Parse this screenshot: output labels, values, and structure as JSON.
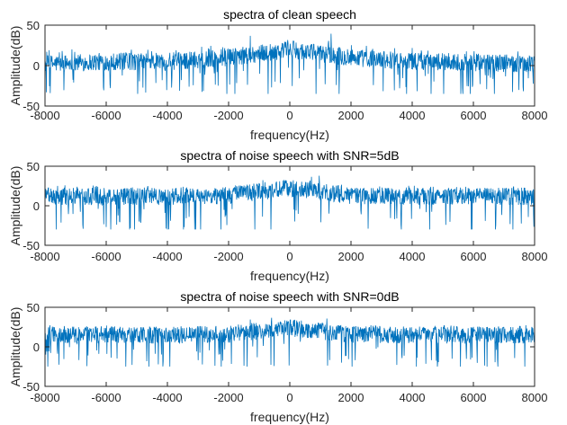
{
  "chart_data": [
    {
      "type": "line",
      "title": "spectra of clean speech",
      "xlabel": "frequency(Hz)",
      "ylabel": "Amplitude(dB)",
      "xlim": [
        -8000,
        8000
      ],
      "ylim": [
        -50,
        50
      ],
      "xticks": [
        "-8000",
        "-6000",
        "-4000",
        "-2000",
        "0",
        "2000",
        "4000",
        "6000",
        "8000"
      ],
      "yticks": [
        "-50",
        "0",
        "50"
      ],
      "series_profile": {
        "color": "#0072BD",
        "center_hz": [
          -8000,
          -6000,
          -4000,
          -2000,
          -1000,
          0,
          1000,
          2000,
          4000,
          6000,
          8000
        ],
        "mean_db": [
          2,
          5,
          5,
          10,
          15,
          20,
          15,
          10,
          5,
          4,
          2
        ],
        "peak_db": 40,
        "min_db": -35
      }
    },
    {
      "type": "line",
      "title": "spectra of noise speech with SNR=5dB",
      "xlabel": "frequency(Hz)",
      "ylabel": "Amplitude(dB)",
      "xlim": [
        -8000,
        8000
      ],
      "ylim": [
        -50,
        50
      ],
      "xticks": [
        "-8000",
        "-6000",
        "-4000",
        "-2000",
        "0",
        "2000",
        "4000",
        "6000",
        "8000"
      ],
      "yticks": [
        "-50",
        "0",
        "50"
      ],
      "series_profile": {
        "color": "#0072BD",
        "center_hz": [
          -8000,
          -6000,
          -4000,
          -2000,
          -1000,
          0,
          1000,
          2000,
          4000,
          6000,
          8000
        ],
        "mean_db": [
          12,
          12,
          12,
          13,
          18,
          22,
          18,
          13,
          12,
          12,
          12
        ],
        "peak_db": 38,
        "min_db": -30
      }
    },
    {
      "type": "line",
      "title": "spectra of noise speech with SNR=0dB",
      "xlabel": "frequency(Hz)",
      "ylabel": "Amplitude(dB)",
      "xlim": [
        -8000,
        8000
      ],
      "ylim": [
        -50,
        50
      ],
      "xticks": [
        "-8000",
        "-6000",
        "-4000",
        "-2000",
        "0",
        "2000",
        "4000",
        "6000",
        "8000"
      ],
      "yticks": [
        "-50",
        "0",
        "50"
      ],
      "series_profile": {
        "color": "#0072BD",
        "center_hz": [
          -8000,
          -6000,
          -4000,
          -2000,
          -1000,
          0,
          1000,
          2000,
          4000,
          6000,
          8000
        ],
        "mean_db": [
          15,
          15,
          15,
          16,
          20,
          24,
          20,
          16,
          15,
          15,
          15
        ],
        "peak_db": 38,
        "min_db": -25
      }
    }
  ]
}
